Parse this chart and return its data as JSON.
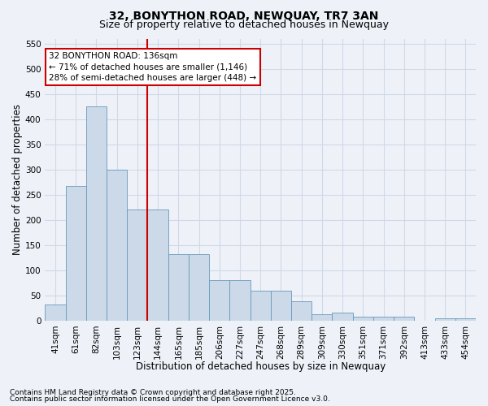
{
  "title_line1": "32, BONYTHON ROAD, NEWQUAY, TR7 3AN",
  "title_line2": "Size of property relative to detached houses in Newquay",
  "xlabel": "Distribution of detached houses by size in Newquay",
  "ylabel": "Number of detached properties",
  "annotation_line1": "32 BONYTHON ROAD: 136sqm",
  "annotation_line2": "← 71% of detached houses are smaller (1,146)",
  "annotation_line3": "28% of semi-detached houses are larger (448) →",
  "categories": [
    "41sqm",
    "61sqm",
    "82sqm",
    "103sqm",
    "123sqm",
    "144sqm",
    "165sqm",
    "185sqm",
    "206sqm",
    "227sqm",
    "247sqm",
    "268sqm",
    "289sqm",
    "309sqm",
    "330sqm",
    "351sqm",
    "371sqm",
    "392sqm",
    "413sqm",
    "433sqm",
    "454sqm"
  ],
  "values": [
    32,
    268,
    425,
    300,
    220,
    220,
    132,
    132,
    80,
    80,
    60,
    60,
    38,
    13,
    16,
    8,
    8,
    8,
    0,
    5,
    5
  ],
  "bar_color": "#ccd9e8",
  "bar_edge_color": "#6699bb",
  "vline_color": "#cc0000",
  "vline_x_index": 4,
  "ylim": [
    0,
    560
  ],
  "yticks": [
    0,
    50,
    100,
    150,
    200,
    250,
    300,
    350,
    400,
    450,
    500,
    550
  ],
  "bg_color": "#eef2f8",
  "plot_bg_color": "#eef2f8",
  "grid_color": "#d0d8e8",
  "footnote_line1": "Contains HM Land Registry data © Crown copyright and database right 2025.",
  "footnote_line2": "Contains public sector information licensed under the Open Government Licence v3.0.",
  "annotation_box_color": "#cc0000",
  "title_fontsize": 10,
  "subtitle_fontsize": 9,
  "axis_label_fontsize": 8.5,
  "tick_fontsize": 7.5,
  "annotation_fontsize": 7.5,
  "footnote_fontsize": 6.5
}
